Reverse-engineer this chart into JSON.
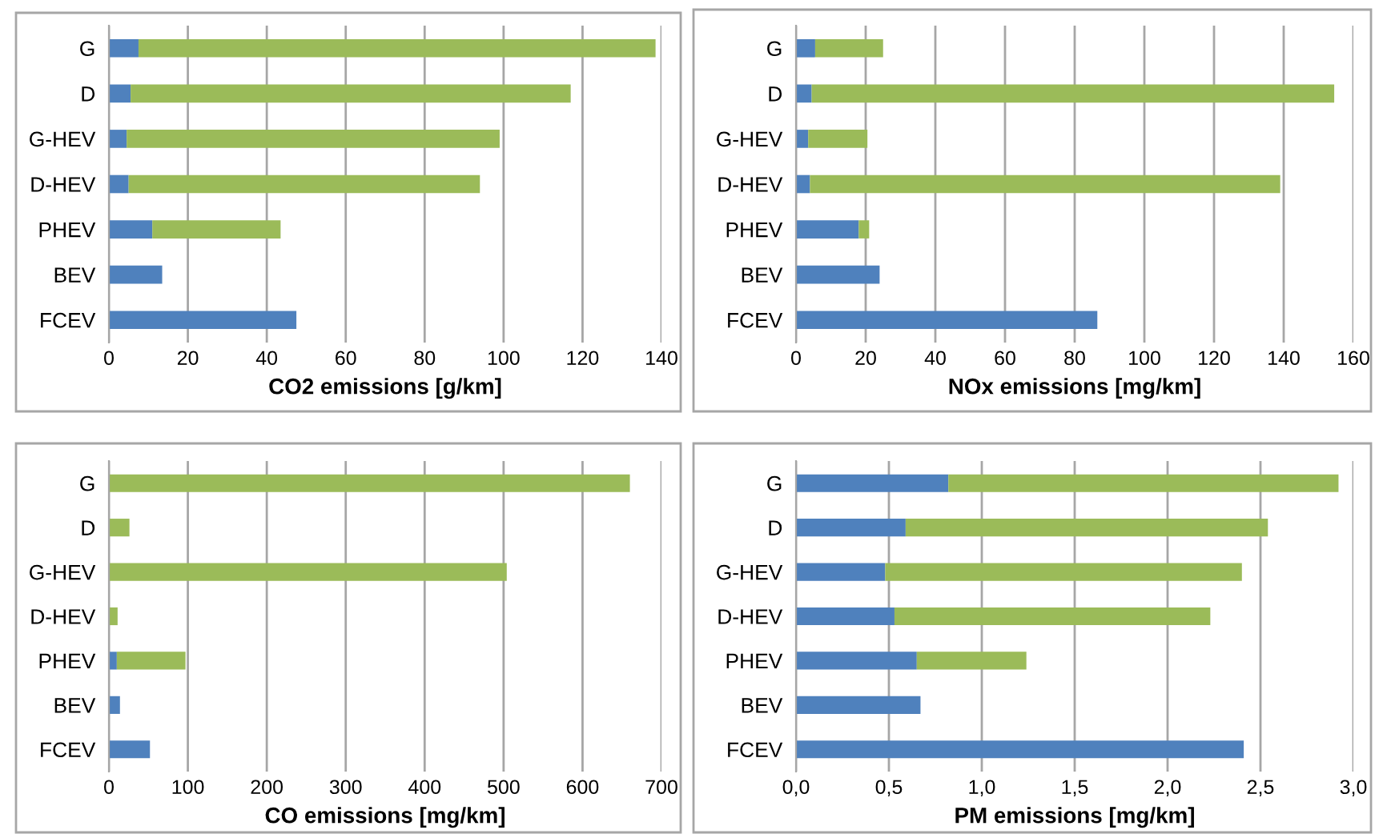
{
  "chart_data": [
    {
      "type": "bar",
      "orientation": "horizontal",
      "stacked": true,
      "xlabel": "CO2 emissions [g/km]",
      "categories": [
        "G",
        "D",
        "G-HEV",
        "D-HEV",
        "PHEV",
        "BEV",
        "FCEV"
      ],
      "series": [
        {
          "color": "#4f81bd",
          "values": [
            7.5,
            5.5,
            4.5,
            5,
            11,
            13.5,
            47.5
          ]
        },
        {
          "color": "#9bbb59",
          "values": [
            131,
            111.5,
            94.5,
            89,
            32.5,
            null,
            null
          ]
        }
      ],
      "xlim": [
        0,
        140
      ],
      "xticks": [
        0,
        20,
        40,
        60,
        80,
        100,
        120,
        140
      ],
      "grid": "x"
    },
    {
      "type": "bar",
      "orientation": "horizontal",
      "stacked": true,
      "xlabel": "NOx emissions [mg/km]",
      "categories": [
        "G",
        "D",
        "G-HEV",
        "D-HEV",
        "PHEV",
        "BEV",
        "FCEV"
      ],
      "series": [
        {
          "color": "#4f81bd",
          "values": [
            5.5,
            4.5,
            3.5,
            4,
            18,
            24,
            86.5
          ]
        },
        {
          "color": "#9bbb59",
          "values": [
            19.5,
            150,
            17,
            135,
            3,
            null,
            null
          ]
        }
      ],
      "xlim": [
        0,
        160
      ],
      "xticks": [
        0,
        20,
        40,
        60,
        80,
        100,
        120,
        140,
        160
      ],
      "grid": "x"
    },
    {
      "type": "bar",
      "orientation": "horizontal",
      "stacked": true,
      "xlabel": "CO emissions [mg/km]",
      "categories": [
        "G",
        "D",
        "G-HEV",
        "D-HEV",
        "PHEV",
        "BEV",
        "FCEV"
      ],
      "series": [
        {
          "color": "#4f81bd",
          "values": [
            null,
            null,
            null,
            null,
            10,
            14,
            52
          ]
        },
        {
          "color": "#9bbb59",
          "values": [
            660,
            26,
            504,
            11,
            87,
            null,
            null
          ]
        }
      ],
      "xlim": [
        0,
        700
      ],
      "xticks": [
        0,
        100,
        200,
        300,
        400,
        500,
        600,
        700
      ],
      "grid": "x"
    },
    {
      "type": "bar",
      "orientation": "horizontal",
      "stacked": true,
      "xlabel": "PM emissions [mg/km]",
      "categories": [
        "G",
        "D",
        "G-HEV",
        "D-HEV",
        "PHEV",
        "BEV",
        "FCEV"
      ],
      "series": [
        {
          "color": "#4f81bd",
          "values": [
            0.82,
            0.59,
            0.48,
            0.53,
            0.65,
            0.67,
            2.41
          ]
        },
        {
          "color": "#9bbb59",
          "values": [
            2.1,
            1.95,
            1.92,
            1.7,
            0.59,
            null,
            null
          ]
        }
      ],
      "xlim": [
        0,
        3.0
      ],
      "xticks": [
        {
          "value": 0,
          "label": "0,0"
        },
        {
          "value": 0.5,
          "label": "0,5"
        },
        {
          "value": 1.0,
          "label": "1,0"
        },
        {
          "value": 1.5,
          "label": "1,5"
        },
        {
          "value": 2.0,
          "label": "2,0"
        },
        {
          "value": 2.5,
          "label": "2,5"
        },
        {
          "value": 3.0,
          "label": "3,0"
        }
      ],
      "grid": "x"
    }
  ]
}
